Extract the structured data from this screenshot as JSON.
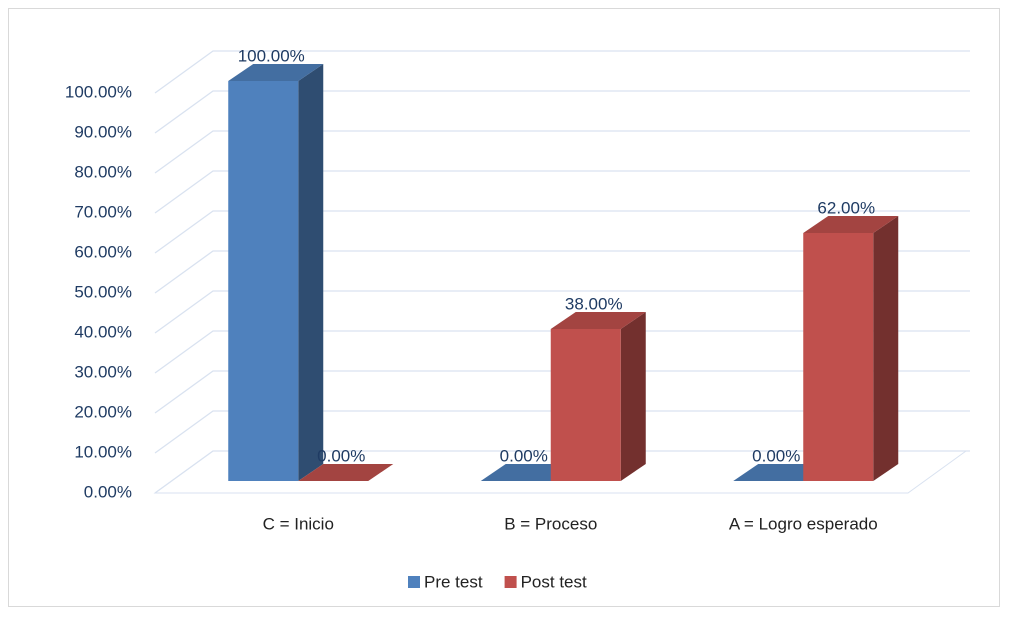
{
  "chart_data": {
    "type": "bar3d",
    "categories": [
      "C = Inicio",
      "B = Proceso",
      "A = Logro esperado"
    ],
    "series": [
      {
        "name": "Pre test",
        "color": "#4f81bd",
        "values": [
          100,
          0,
          0
        ],
        "value_labels": [
          "100.00%",
          "0.00%",
          "0.00%"
        ]
      },
      {
        "name": "Post test",
        "color": "#c0504d",
        "values": [
          0,
          38,
          62
        ],
        "value_labels": [
          "0.00%",
          "38.00%",
          "62.00%"
        ]
      }
    ],
    "ylim": [
      0,
      100
    ],
    "yticks": [
      {
        "value": 0,
        "label": "0.00%"
      },
      {
        "value": 10,
        "label": "10.00%"
      },
      {
        "value": 20,
        "label": "20.00%"
      },
      {
        "value": 30,
        "label": "30.00%"
      },
      {
        "value": 40,
        "label": "40.00%"
      },
      {
        "value": 50,
        "label": "50.00%"
      },
      {
        "value": 60,
        "label": "60.00%"
      },
      {
        "value": 70,
        "label": "70.00%"
      },
      {
        "value": 80,
        "label": "80.00%"
      },
      {
        "value": 90,
        "label": "90.00%"
      },
      {
        "value": 100,
        "label": "100.00%"
      }
    ],
    "grid": true,
    "legend": "bottom"
  }
}
